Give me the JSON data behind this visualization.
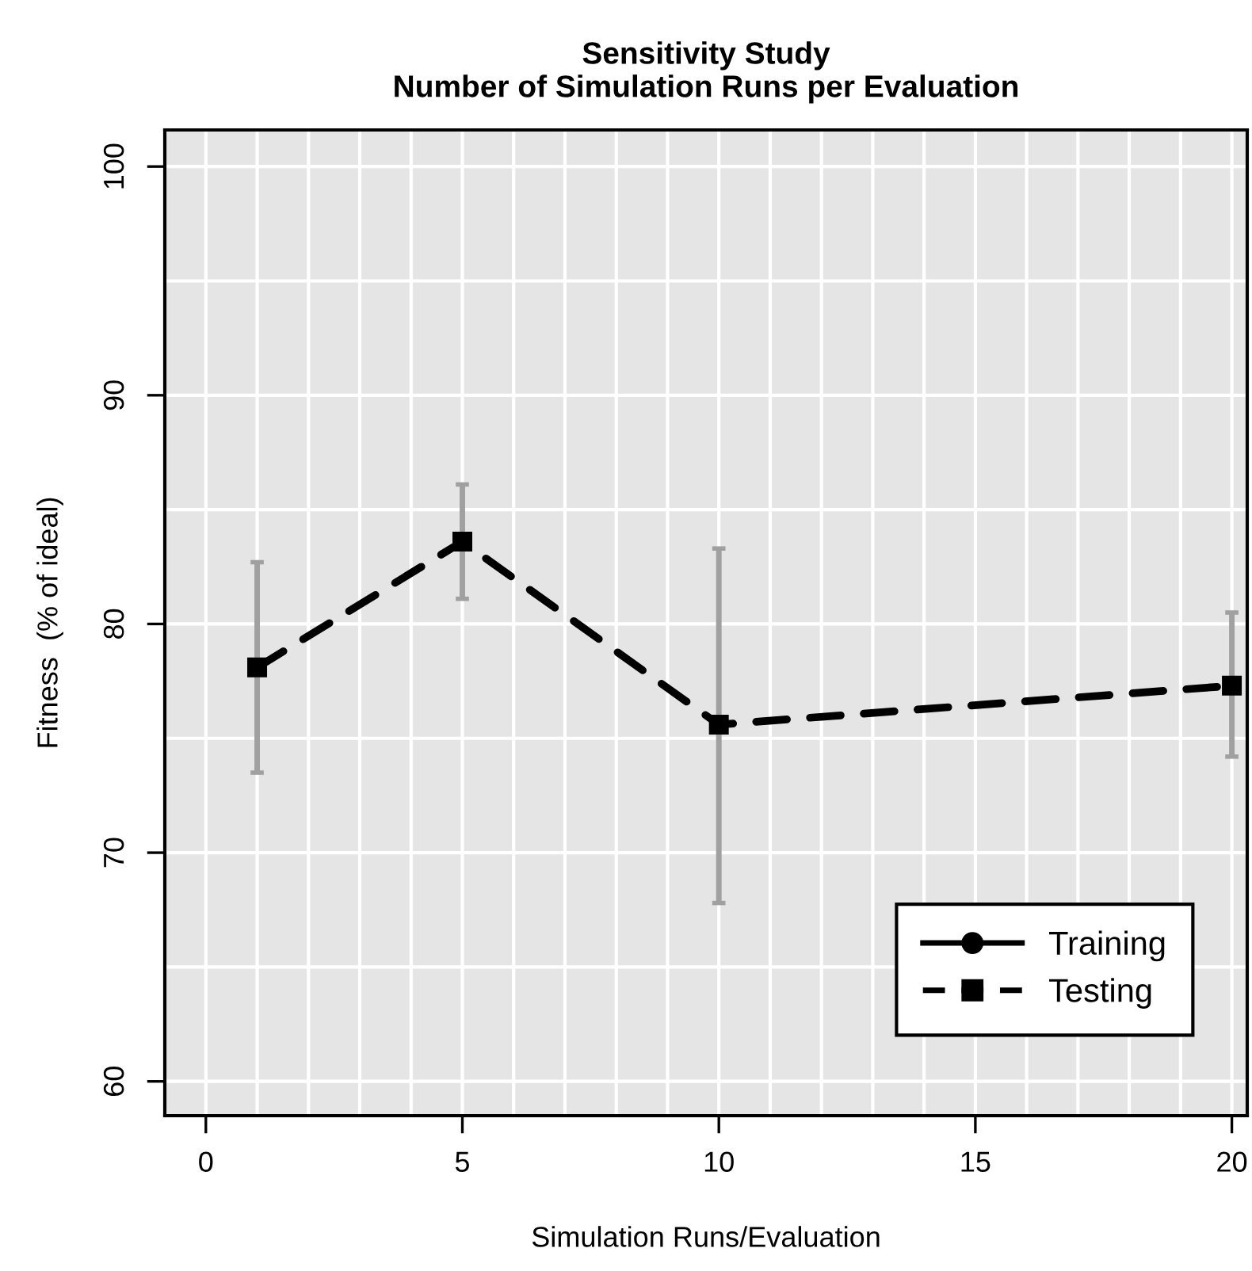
{
  "chart_data": {
    "type": "line",
    "title": "Sensitivity Study\nNumber of Simulation Runs per Evaluation",
    "xlabel": "Simulation Runs/Evaluation",
    "ylabel": "Fitness  (% of ideal)",
    "x": [
      1,
      5,
      10,
      20
    ],
    "series": [
      {
        "name": "Training",
        "color": "#000000",
        "values": [
          null,
          null,
          null,
          null
        ],
        "marker": "circle",
        "line_style": "solid"
      },
      {
        "name": "Testing",
        "color": "#000000",
        "values": [
          78.1,
          83.6,
          75.6,
          77.3
        ],
        "marker": "square",
        "line_style": "dashed",
        "errors": [
          [
            73.5,
            82.7
          ],
          [
            81.1,
            86.1
          ],
          [
            67.8,
            83.3
          ],
          [
            74.2,
            80.5
          ]
        ]
      }
    ],
    "xlim": [
      -0.8,
      20.3
    ],
    "ylim": [
      58.5,
      101.6
    ],
    "xticks": [
      0,
      {
        "value": 1,
        "label": null
      },
      {
        "value": 2,
        "label": null
      },
      {
        "value": 3,
        "label": null
      },
      {
        "value": 4,
        "label": null
      },
      5,
      {
        "value": 6,
        "label": null
      },
      {
        "value": 7,
        "label": null
      },
      {
        "value": 8,
        "label": null
      },
      {
        "value": 9,
        "label": null
      },
      10,
      {
        "value": 11,
        "label": null
      },
      {
        "value": 12,
        "label": null
      },
      {
        "value": 13,
        "label": null
      },
      {
        "value": 14,
        "label": null
      },
      15,
      {
        "value": 16,
        "label": null
      },
      {
        "value": 17,
        "label": null
      },
      {
        "value": 18,
        "label": null
      },
      {
        "value": 19,
        "label": null
      },
      20
    ],
    "yticks": [
      60,
      {
        "value": 65,
        "label": null
      },
      70,
      {
        "value": 75,
        "label": null
      },
      80,
      {
        "value": 85,
        "label": null
      },
      90,
      {
        "value": 95,
        "label": null
      },
      100
    ],
    "grid": true,
    "legend": "bottom right"
  }
}
